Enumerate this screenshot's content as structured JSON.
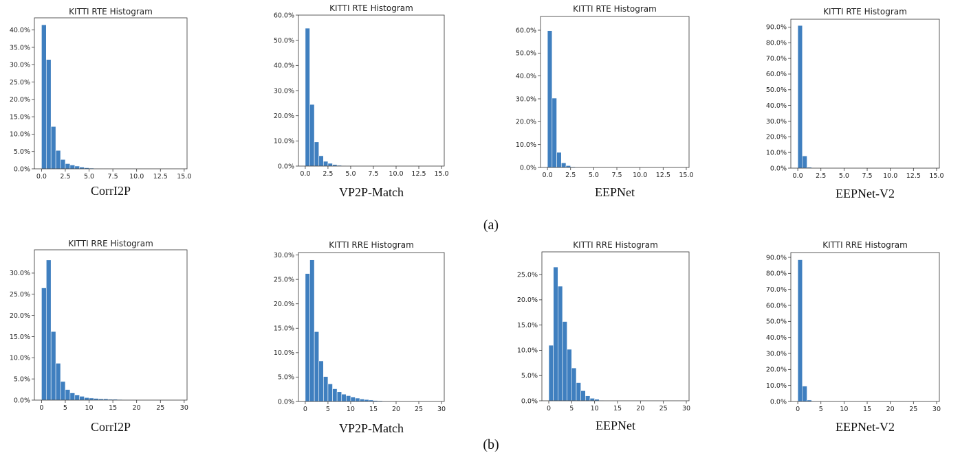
{
  "row_labels": [
    "(a)",
    "(b)"
  ],
  "chart_data": [
    {
      "type": "bar",
      "title": "KITTI RTE Histogram",
      "method": "CorrI2P",
      "xlim": [
        -0.75,
        15.3
      ],
      "ylim": [
        0,
        0.435
      ],
      "xticks": [
        "0.0",
        "2.5",
        "5.0",
        "7.5",
        "10.0",
        "12.5",
        "15.0"
      ],
      "xtick_values": [
        0,
        2.5,
        5,
        7.5,
        10,
        12.5,
        15
      ],
      "yticks": [
        "0.0%",
        "5.0%",
        "10.0%",
        "15.0%",
        "20.0%",
        "25.0%",
        "30.0%",
        "35.0%",
        "40.0%"
      ],
      "ytick_values": [
        0,
        0.05,
        0.1,
        0.15,
        0.2,
        0.25,
        0.3,
        0.35,
        0.4
      ],
      "bin_width": 0.5,
      "bin_start": 0,
      "values": [
        0.415,
        0.315,
        0.122,
        0.053,
        0.027,
        0.015,
        0.011,
        0.008,
        0.005,
        0.003,
        0.002,
        0.001,
        0.001,
        0.001,
        0.0005,
        0.0005,
        0.0003,
        0.0002,
        0.0002,
        0.0001
      ]
    },
    {
      "type": "bar",
      "title": "KITTI RTE Histogram",
      "method": "VP2P-Match",
      "xlim": [
        -0.75,
        15.3
      ],
      "ylim": [
        0,
        0.6
      ],
      "xticks": [
        "0.0",
        "2.5",
        "5.0",
        "7.5",
        "10.0",
        "12.5",
        "15.0"
      ],
      "xtick_values": [
        0,
        2.5,
        5,
        7.5,
        10,
        12.5,
        15
      ],
      "yticks": [
        "0.0%",
        "10.0%",
        "20.0%",
        "30.0%",
        "40.0%",
        "50.0%",
        "60.0%"
      ],
      "ytick_values": [
        0,
        0.1,
        0.2,
        0.3,
        0.4,
        0.5,
        0.6
      ],
      "bin_width": 0.5,
      "bin_start": 0,
      "values": [
        0.548,
        0.245,
        0.096,
        0.041,
        0.019,
        0.011,
        0.006,
        0.003,
        0.002,
        0.001,
        0.001,
        0.0005
      ]
    },
    {
      "type": "bar",
      "title": "KITTI RTE Histogram",
      "method": "EEPNet",
      "xlim": [
        -0.75,
        15.3
      ],
      "ylim": [
        0,
        0.66
      ],
      "xticks": [
        "0.0",
        "2.5",
        "5.0",
        "7.5",
        "10.0",
        "12.5",
        "15.0"
      ],
      "xtick_values": [
        0,
        2.5,
        5,
        7.5,
        10,
        12.5,
        15
      ],
      "yticks": [
        "0.0%",
        "10.0%",
        "20.0%",
        "30.0%",
        "40.0%",
        "50.0%",
        "60.0%"
      ],
      "ytick_values": [
        0,
        0.1,
        0.2,
        0.3,
        0.4,
        0.5,
        0.6
      ],
      "bin_width": 0.5,
      "bin_start": 0,
      "values": [
        0.598,
        0.303,
        0.066,
        0.02,
        0.008,
        0.003,
        0.001,
        0.0005
      ]
    },
    {
      "type": "bar",
      "title": "KITTI RTE Histogram",
      "method": "EEPNet-V2",
      "xlim": [
        -0.75,
        15.3
      ],
      "ylim": [
        0,
        0.95
      ],
      "xticks": [
        "0.0",
        "2.5",
        "5.0",
        "7.5",
        "10.0",
        "12.5",
        "15.0"
      ],
      "xtick_values": [
        0,
        2.5,
        5,
        7.5,
        10,
        12.5,
        15
      ],
      "yticks": [
        "0.0%",
        "10.0%",
        "20.0%",
        "30.0%",
        "40.0%",
        "50.0%",
        "60.0%",
        "70.0%",
        "80.0%",
        "90.0%"
      ],
      "ytick_values": [
        0,
        0.1,
        0.2,
        0.3,
        0.4,
        0.5,
        0.6,
        0.7,
        0.8,
        0.9
      ],
      "bin_width": 0.5,
      "bin_start": 0,
      "values": [
        0.91,
        0.078,
        0.006,
        0.002,
        0.001,
        0.0005
      ]
    },
    {
      "type": "bar",
      "title": "KITTI RRE Histogram",
      "method": "CorrI2P",
      "xlim": [
        -1.5,
        30.6
      ],
      "ylim": [
        0,
        0.355
      ],
      "xticks": [
        "0",
        "5",
        "10",
        "15",
        "20",
        "25",
        "30"
      ],
      "xtick_values": [
        0,
        5,
        10,
        15,
        20,
        25,
        30
      ],
      "yticks": [
        "0.0%",
        "5.0%",
        "10.0%",
        "15.0%",
        "20.0%",
        "25.0%",
        "30.0%"
      ],
      "ytick_values": [
        0,
        0.05,
        0.1,
        0.15,
        0.2,
        0.25,
        0.3
      ],
      "bin_width": 1,
      "bin_start": 0,
      "values": [
        0.265,
        0.331,
        0.162,
        0.087,
        0.044,
        0.025,
        0.017,
        0.012,
        0.009,
        0.006,
        0.005,
        0.004,
        0.003,
        0.003,
        0.002,
        0.002,
        0.0015,
        0.0012,
        0.001,
        0.001,
        0.0008,
        0.0007,
        0.0006,
        0.0005,
        0.0005,
        0.0004,
        0.0004,
        0.0003,
        0.0003,
        0.0003
      ]
    },
    {
      "type": "bar",
      "title": "KITTI RRE Histogram",
      "method": "VP2P-Match",
      "xlim": [
        -1.5,
        30.6
      ],
      "ylim": [
        0,
        0.305
      ],
      "xticks": [
        "0",
        "5",
        "10",
        "15",
        "20",
        "25",
        "30"
      ],
      "xtick_values": [
        0,
        5,
        10,
        15,
        20,
        25,
        30
      ],
      "yticks": [
        "0.0%",
        "5.0%",
        "10.0%",
        "15.0%",
        "20.0%",
        "25.0%",
        "30.0%"
      ],
      "ytick_values": [
        0,
        0.05,
        0.1,
        0.15,
        0.2,
        0.25,
        0.3
      ],
      "bin_width": 1,
      "bin_start": 0,
      "values": [
        0.262,
        0.29,
        0.143,
        0.083,
        0.051,
        0.036,
        0.026,
        0.02,
        0.015,
        0.012,
        0.009,
        0.007,
        0.005,
        0.004,
        0.003,
        0.002,
        0.0015,
        0.001,
        0.0008,
        0.0006
      ]
    },
    {
      "type": "bar",
      "title": "KITTI RRE Histogram",
      "method": "EEPNet",
      "xlim": [
        -1.5,
        30.6
      ],
      "ylim": [
        0,
        0.295
      ],
      "xticks": [
        "0",
        "5",
        "10",
        "15",
        "20",
        "25",
        "30"
      ],
      "xtick_values": [
        0,
        5,
        10,
        15,
        20,
        25,
        30
      ],
      "yticks": [
        "0.0%",
        "5.0%",
        "10.0%",
        "15.0%",
        "20.0%",
        "25.0%"
      ],
      "ytick_values": [
        0,
        0.05,
        0.1,
        0.15,
        0.2,
        0.25
      ],
      "bin_width": 1,
      "bin_start": 0,
      "values": [
        0.11,
        0.265,
        0.227,
        0.157,
        0.102,
        0.065,
        0.036,
        0.02,
        0.01,
        0.005,
        0.003,
        0.001,
        0.0005
      ]
    },
    {
      "type": "bar",
      "title": "KITTI RRE Histogram",
      "method": "EEPNet-V2",
      "xlim": [
        -1.5,
        30.6
      ],
      "ylim": [
        0,
        0.93
      ],
      "xticks": [
        "0",
        "5",
        "10",
        "15",
        "20",
        "25",
        "30"
      ],
      "xtick_values": [
        0,
        5,
        10,
        15,
        20,
        25,
        30
      ],
      "yticks": [
        "0.0%",
        "10.0%",
        "20.0%",
        "30.0%",
        "40.0%",
        "50.0%",
        "60.0%",
        "70.0%",
        "80.0%",
        "90.0%"
      ],
      "ytick_values": [
        0,
        0.1,
        0.2,
        0.3,
        0.4,
        0.5,
        0.6,
        0.7,
        0.8,
        0.9
      ],
      "bin_width": 1,
      "bin_start": 0,
      "values": [
        0.885,
        0.096,
        0.009,
        0.003,
        0.001,
        0.0005
      ]
    }
  ]
}
